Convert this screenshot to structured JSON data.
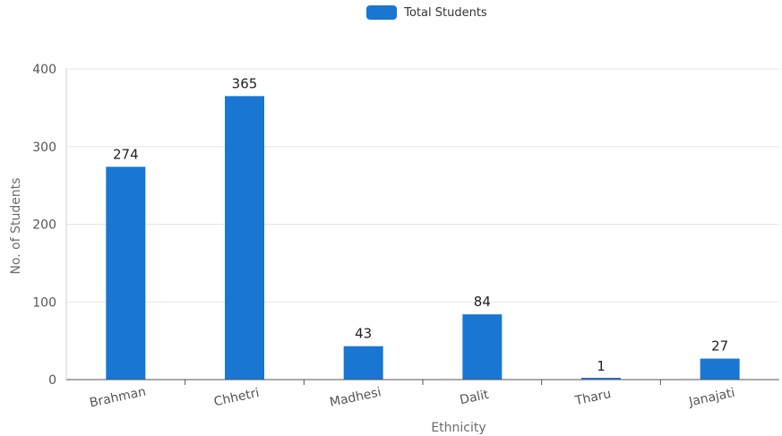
{
  "chart_data": {
    "type": "bar",
    "title": "",
    "xlabel": "Ethnicity",
    "ylabel": "No. of Students",
    "categories": [
      "Brahman",
      "Chhetri",
      "Madhesi",
      "Dalit",
      "Tharu",
      "Janajati"
    ],
    "series": [
      {
        "name": "Total Students",
        "values": [
          274,
          365,
          43,
          84,
          1,
          27
        ],
        "color": "#1976d2"
      }
    ],
    "ylim": [
      0,
      400
    ],
    "yticks": [
      0,
      100,
      200,
      300,
      400
    ],
    "grid": true,
    "legend_position": "top-center",
    "data_labels": true
  },
  "colors": {
    "bar": "#1976d2",
    "grid": "#e6e6e6",
    "axis": "#555555"
  }
}
